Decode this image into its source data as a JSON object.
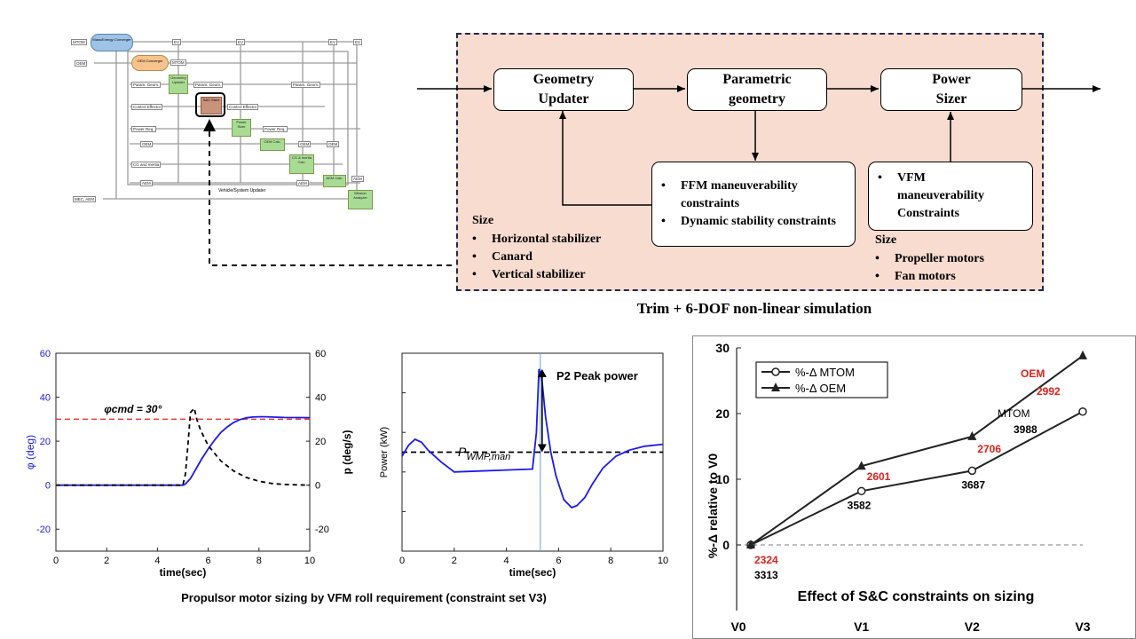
{
  "overview": {
    "labels": {
      "mtom": "MTOM",
      "mass_energy": "Mass/Energy Converger",
      "oem_left": "OEM",
      "oem_converger": "OEM Converger",
      "mtom2": "MTOM",
      "ev1": "EV",
      "ev2": "EV",
      "ev3": "EV",
      "ev4": "EV",
      "param_geom1": "Param. Geom.",
      "geometry_updater": "Geometry Updater",
      "param_geom2": "Param. Geom.",
      "param_geom3": "Param. Geom.",
      "control_effector1": "Control Effector",
      "snc_sizer": "S&C Sizer",
      "control_effector2": "Control Effector",
      "power_req1": "Power Req.",
      "power_sizer": "Power Sizer",
      "power_req2": "Power Req.",
      "oem1": "OEM",
      "oem_calc": "OEM Calc.",
      "oem2": "OEM",
      "oem3": "OEM",
      "cg_inertia": "CG and Inertia",
      "cg_inertia_calc": "CG & Inertia Calc.",
      "aem1": "AEM",
      "aem2": "AEM",
      "aem_calc": "AEM Calc.",
      "aem3": "AEM",
      "vehicle_updater": "Vehicle/System Updater",
      "mec_aem": "MEC, AEM",
      "mission_analyzer": "Mission Analyzer"
    }
  },
  "flow": {
    "geometry_updater": "Geometry\nUpdater",
    "parametric_geometry": "Parametric\ngeometry",
    "power_sizer": "Power\nSizer",
    "constraints_mid": [
      "FFM maneuverability constraints",
      "Dynamic stability constraints"
    ],
    "constraints_right": [
      "VFM maneuverability Constraints"
    ],
    "size_left_heading": "Size",
    "size_left_items": [
      "Horizontal stabilizer",
      "Canard",
      "Vertical stabilizer"
    ],
    "size_right_heading": "Size",
    "size_right_items": [
      "Propeller motors",
      "Fan motors"
    ],
    "caption": "Trim + 6-DOF non-linear simulation",
    "colors": {
      "panel_fill": "#f8dccf",
      "panel_border": "#1f2a4a"
    }
  },
  "roll_chart": {
    "caption": "Propulsor motor sizing by VFM roll requirement (constraint set V3)",
    "chart_data": {
      "type": "line",
      "xlabel": "time(sec)",
      "ylabel_left": "φ (deg)",
      "ylabel_right": "p (deg/s)",
      "xlim": [
        0,
        10
      ],
      "ylim_left": [
        -30,
        60
      ],
      "ylim_right": [
        -30,
        60
      ],
      "x_ticks": [
        "0",
        "2",
        "4",
        "6",
        "8",
        "10"
      ],
      "y_ticks_left": [
        "-20",
        "0",
        "20",
        "40",
        "60"
      ],
      "y_ticks_right": [
        "-20",
        "0",
        "20",
        "40",
        "60"
      ],
      "annotation": "φcmd = 30°",
      "reference": {
        "value": 30,
        "style": "dashed",
        "color": "#ee3333"
      },
      "series": [
        {
          "name": "φ",
          "axis": "left",
          "color": "#1a1aee",
          "x": [
            0,
            5,
            5.1,
            5.3,
            5.5,
            5.75,
            6,
            6.25,
            6.5,
            6.75,
            7,
            7.25,
            7.5,
            7.75,
            8,
            8.25,
            8.5,
            9,
            10
          ],
          "y": [
            0,
            0,
            0.5,
            3,
            7,
            12,
            16.5,
            20.5,
            24,
            26.5,
            28.5,
            29.8,
            30.6,
            31,
            31.1,
            31.1,
            31,
            30.8,
            30.7
          ]
        },
        {
          "name": "p",
          "axis": "right",
          "color": "#000000",
          "dashed": true,
          "x": [
            0,
            5,
            5.1,
            5.2,
            5.3,
            5.45,
            5.55,
            5.7,
            6,
            6.5,
            7,
            7.5,
            8,
            8.5,
            9,
            10
          ],
          "y": [
            0,
            0,
            5,
            18,
            33,
            35,
            30,
            25,
            18,
            11,
            6.5,
            3.5,
            1.8,
            0.8,
            0.3,
            0
          ]
        }
      ]
    }
  },
  "power_chart": {
    "chart_data": {
      "type": "line",
      "xlabel": "time(sec)",
      "ylabel": "Power (kW)",
      "xlim": [
        0,
        10
      ],
      "ylim": [
        0,
        100
      ],
      "x_ticks": [
        "0",
        "2",
        "4",
        "6",
        "8",
        "10"
      ],
      "peak_label": "P2 Peak power",
      "reference_label": "PWMP,man",
      "reference": {
        "value": 50
      },
      "peak_time": 5.3,
      "series": [
        {
          "name": "Power",
          "color": "#1a1aee",
          "x": [
            0,
            0.25,
            0.5,
            0.75,
            1,
            1.5,
            2,
            3,
            4,
            5,
            5.15,
            5.25,
            5.35,
            5.5,
            5.7,
            5.9,
            6.2,
            6.5,
            6.7,
            7,
            7.3,
            7.7,
            8.2,
            8.7,
            9.3,
            10
          ],
          "y": [
            48,
            53.5,
            56.5,
            55,
            51,
            45,
            40,
            40.5,
            41,
            41.5,
            60,
            92,
            88,
            68,
            50,
            38,
            26,
            22,
            23,
            27,
            34,
            42,
            48,
            51,
            53,
            54
          ]
        }
      ]
    }
  },
  "sizing_chart": {
    "caption": "Effect of S&C constraints on sizing",
    "chart_data": {
      "type": "line",
      "categories": [
        "V0",
        "V1",
        "V2",
        "V3"
      ],
      "ylabel": "%-Δ relative to V0",
      "ylim": [
        -10,
        30
      ],
      "y_ticks": [
        "0",
        "10",
        "20",
        "30"
      ],
      "legend": [
        "%-Δ MTOM",
        "%-Δ OEM"
      ],
      "legend_position": "top-left",
      "series": [
        {
          "name": "%-Δ MTOM",
          "marker": "circle",
          "values": [
            0,
            8.2,
            11.3,
            20.3
          ],
          "labels": [
            "3313",
            "3582",
            "3687",
            "3988"
          ]
        },
        {
          "name": "%-Δ OEM",
          "marker": "triangle",
          "values": [
            0,
            12,
            16.5,
            28.8
          ],
          "labels": [
            "2324",
            "2601",
            "2706",
            "2992"
          ]
        }
      ],
      "annotations": [
        "OEM",
        "MTOM"
      ],
      "colors": {
        "highlight": "#e0201a"
      }
    }
  }
}
